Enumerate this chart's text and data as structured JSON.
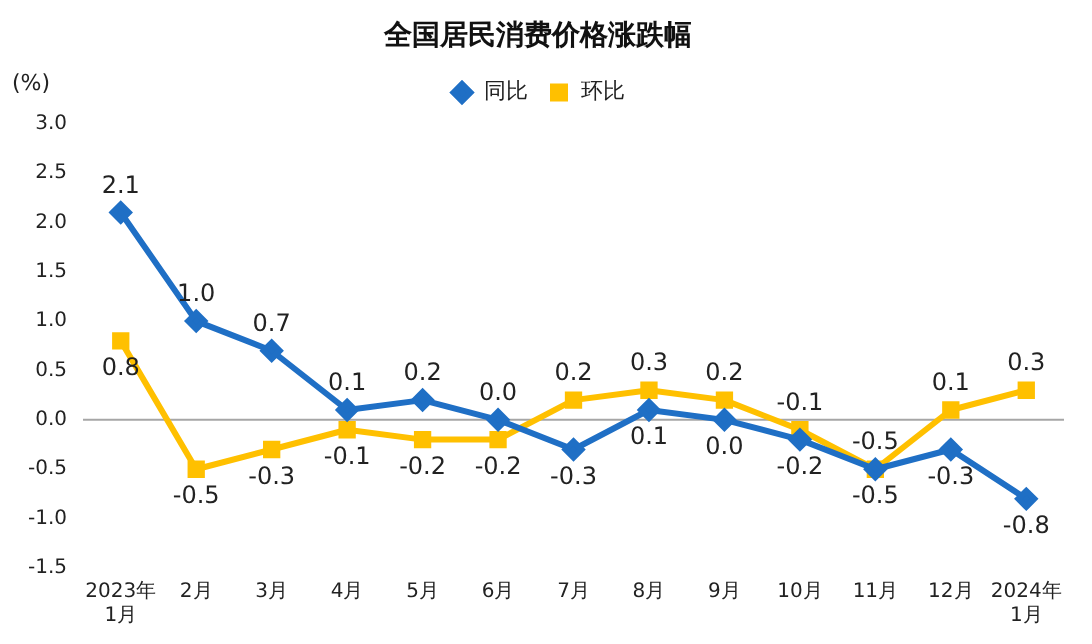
{
  "chart_data": {
    "type": "line",
    "title": "全国居民消费价格涨跌幅",
    "ylabel": "(%)",
    "categories": [
      "2023年\n1月",
      "2月",
      "3月",
      "4月",
      "5月",
      "6月",
      "7月",
      "8月",
      "9月",
      "10月",
      "11月",
      "12月",
      "2024年\n1月"
    ],
    "series": [
      {
        "name": "同比",
        "color": "#1f6fc5",
        "marker": "diamond",
        "values": [
          2.1,
          1.0,
          0.7,
          0.1,
          0.2,
          0.0,
          -0.3,
          0.1,
          0.0,
          -0.2,
          -0.5,
          -0.3,
          -0.8
        ],
        "value_labels": [
          "2.1",
          "1.0",
          "0.7",
          "0.1",
          "0.2",
          "0.0",
          "-0.3",
          "0.1",
          "0.0",
          "-0.2",
          "-0.5",
          "-0.3",
          "-0.8"
        ]
      },
      {
        "name": "环比",
        "color": "#ffc000",
        "marker": "square",
        "values": [
          0.8,
          -0.5,
          -0.3,
          -0.1,
          -0.2,
          -0.2,
          0.2,
          0.3,
          0.2,
          -0.1,
          -0.5,
          0.1,
          0.3
        ],
        "value_labels": [
          "0.8",
          "-0.5",
          "-0.3",
          "-0.1",
          "-0.2",
          "-0.2",
          "0.2",
          "0.3",
          "0.2",
          "-0.1",
          "-0.5",
          "0.1",
          "0.3"
        ]
      }
    ],
    "ylim": [
      -1.5,
      3.0
    ],
    "yticks": [
      {
        "value": -1.5,
        "label": "-1.5"
      },
      {
        "value": -1,
        "label": "-1.0"
      },
      {
        "value": -0.5,
        "label": "-0.5"
      },
      {
        "value": 0,
        "label": "0.0"
      },
      {
        "value": 0.5,
        "label": "0.5"
      },
      {
        "value": 1,
        "label": "1.0"
      },
      {
        "value": 1.5,
        "label": "1.5"
      },
      {
        "value": 2,
        "label": "2.0"
      },
      {
        "value": 2.5,
        "label": "2.5"
      },
      {
        "value": 3,
        "label": "3.0"
      }
    ],
    "ref_lines": [
      {
        "axis": "y",
        "value": 0,
        "color": "#a6a6a6"
      }
    ],
    "legend": "top",
    "line_style": "solid"
  }
}
